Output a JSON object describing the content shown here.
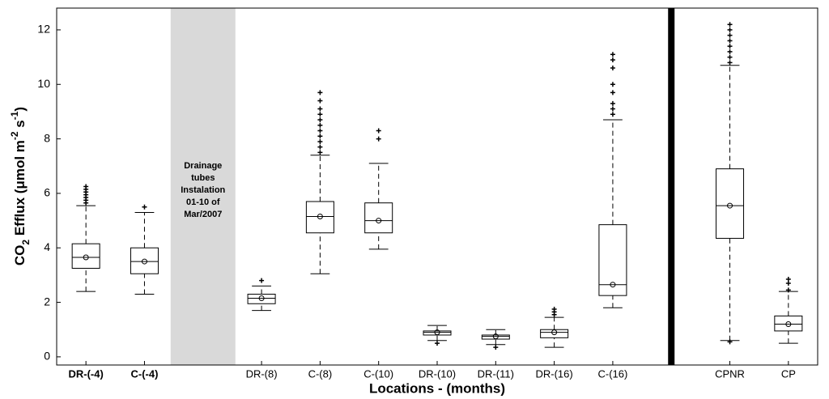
{
  "chart_data": {
    "type": "box",
    "x_label": "Locations - (months)",
    "y_label": [
      "CO",
      "2",
      " Efflux (μmol m",
      "-2",
      " s",
      "-1",
      ")"
    ],
    "annotation": [
      "Drainage",
      "tubes",
      "Instalation",
      "01-10 of",
      "Mar/2007"
    ],
    "categories": [
      "DR-(-4)",
      "C-(-4)",
      null,
      "DR-(8)",
      "C-(8)",
      "C-(10)",
      "DR-(10)",
      "DR-(11)",
      "DR-(16)",
      "C-(16)",
      null,
      "CPNR",
      "CP"
    ],
    "boxes": [
      {
        "low": 2.4,
        "q1": 3.25,
        "median": 3.65,
        "q3": 4.15,
        "high": 5.55,
        "outliers": [
          5.65,
          5.75,
          5.85,
          5.95,
          6.05,
          6.15,
          6.25
        ]
      },
      {
        "low": 2.3,
        "q1": 3.05,
        "median": 3.5,
        "q3": 4.0,
        "high": 5.3,
        "outliers": [
          5.5
        ]
      },
      null,
      {
        "low": 1.7,
        "q1": 1.95,
        "median": 2.15,
        "q3": 2.3,
        "high": 2.6,
        "outliers": [
          2.8
        ]
      },
      {
        "low": 3.05,
        "q1": 4.55,
        "median": 5.15,
        "q3": 5.7,
        "high": 7.4,
        "outliers": [
          7.5,
          7.7,
          7.9,
          8.1,
          8.3,
          8.5,
          8.7,
          8.9,
          9.1,
          9.4,
          9.7
        ]
      },
      {
        "low": 3.95,
        "q1": 4.55,
        "median": 5.0,
        "q3": 5.65,
        "high": 7.1,
        "outliers": [
          8.0,
          8.3
        ]
      },
      {
        "low": 0.6,
        "q1": 0.8,
        "median": 0.9,
        "q3": 0.95,
        "high": 1.15,
        "outliers": [
          0.5
        ]
      },
      {
        "low": 0.45,
        "q1": 0.65,
        "median": 0.75,
        "q3": 0.8,
        "high": 1.0,
        "outliers": [
          0.35
        ]
      },
      {
        "low": 0.35,
        "q1": 0.7,
        "median": 0.9,
        "q3": 1.0,
        "high": 1.45,
        "outliers": [
          1.55,
          1.65,
          1.75
        ]
      },
      {
        "low": 1.8,
        "q1": 2.25,
        "median": 2.65,
        "q3": 4.85,
        "high": 8.7,
        "outliers": [
          8.9,
          9.1,
          9.3,
          9.7,
          10.0,
          10.6,
          10.9,
          11.1
        ]
      },
      null,
      {
        "low": 0.6,
        "q1": 4.35,
        "median": 5.55,
        "q3": 6.9,
        "high": 10.7,
        "outliers": [
          0.55,
          10.8,
          11.0,
          11.2,
          11.4,
          11.6,
          11.8,
          12.0,
          12.2
        ]
      },
      {
        "low": 0.5,
        "q1": 0.95,
        "median": 1.2,
        "q3": 1.5,
        "high": 2.4,
        "outliers": [
          2.45,
          2.7,
          2.85
        ]
      }
    ],
    "color": "#000000",
    "ylim": [
      -0.3,
      12.8
    ],
    "yticks": [
      0,
      2,
      4,
      6,
      8,
      10,
      12
    ]
  }
}
